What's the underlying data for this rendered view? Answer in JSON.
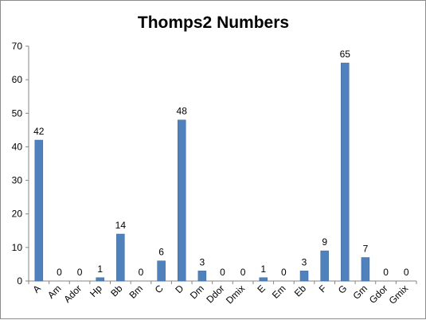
{
  "chart_data": {
    "type": "bar",
    "title": "Thomps2 Numbers",
    "xlabel": "",
    "ylabel": "",
    "categories": [
      "A",
      "Am",
      "Ador",
      "Hp",
      "Bb",
      "Bm",
      "C",
      "D",
      "Dm",
      "Ddor",
      "Dmix",
      "E",
      "Em",
      "Eb",
      "F",
      "G",
      "Gm",
      "Gdor",
      "Gmix"
    ],
    "values": [
      42,
      0,
      0,
      1,
      14,
      0,
      6,
      48,
      3,
      0,
      0,
      1,
      0,
      3,
      9,
      65,
      7,
      0,
      0
    ],
    "ylim": [
      0,
      70
    ],
    "yticks": [
      0,
      10,
      20,
      30,
      40,
      50,
      60,
      70
    ],
    "grid": false,
    "legend": "none",
    "bar_color": "#4f81bd",
    "bar_edge_color": "#3a6698",
    "data_labels": true
  }
}
